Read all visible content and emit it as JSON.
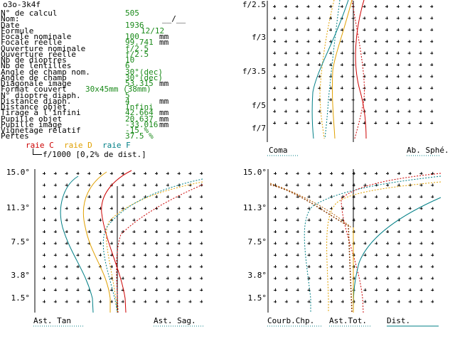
{
  "title": "o3o-3k4f",
  "params": [
    {
      "label": "N° de calcul",
      "value": "505",
      "unit": ""
    },
    {
      "label": "Nom:",
      "value": "__/__",
      "unit": ""
    },
    {
      "label": "Date",
      "value": "1936",
      "unit": ""
    },
    {
      "label": "Formule",
      "value": "12/12",
      "unit": ""
    },
    {
      "label": "Focale nominale",
      "value": "100",
      "unit": "mm"
    },
    {
      "label": "Focale réelle",
      "value": "99.741",
      "unit": "mm"
    },
    {
      "label": "Ouverture nominale",
      "value": "f/2.5",
      "unit": ""
    },
    {
      "label": "Ouverture réelle",
      "value": "f/2.5",
      "unit": ""
    },
    {
      "label": "Nb de dioptres",
      "value": "10",
      "unit": ""
    },
    {
      "label": "Nb de lentilles",
      "value": "6",
      "unit": ""
    },
    {
      "label": "Angle de champ nom.",
      "value": "30°(dec)",
      "unit": ""
    },
    {
      "label": "Angle de champ",
      "value": "30°(dec)",
      "unit": ""
    },
    {
      "label": "Diagonale image",
      "value": "53.315",
      "unit": "mm"
    },
    {
      "label": "Format couvert",
      "value": "30x45mm (38mm)",
      "unit": ""
    },
    {
      "label": "N° dioptre diaph.",
      "value": "5",
      "unit": ""
    },
    {
      "label": "Distance diaph.",
      "value": "4",
      "unit": "mm"
    },
    {
      "label": "Distance objet",
      "value": "Infini",
      "unit": ""
    },
    {
      "label": "Tirage à l'infini",
      "value": "42.664",
      "unit": "mm"
    },
    {
      "label": "Pupille objet",
      "value": "20.637",
      "unit": "mm"
    },
    {
      "label": "Pupille image",
      "value": "-33.016",
      "unit": "mm"
    },
    {
      "label": "Vignetage relatif",
      "value": "-15 %",
      "unit": ""
    },
    {
      "label": "Pertes",
      "value": "37.5 %",
      "unit": ""
    }
  ],
  "legend": {
    "c": "raie C",
    "d": "raie D",
    "f": "raie F",
    "scale": "f/1000 [0,2% de dist.]"
  },
  "colors": {
    "C": "#cc0000",
    "D": "#e0a000",
    "F": "#007f86",
    "value": "#1a8a1a"
  },
  "top_right": {
    "ylabels": [
      "f/2.5",
      "f/3",
      "f/3.5",
      "f/5",
      "f/7"
    ],
    "left_label": "Coma",
    "right_label": "Ab. Sphé."
  },
  "bottom_left": {
    "ylabels": [
      "15.0°",
      "11.3°",
      "7.5°",
      "3.8°",
      "1.5°"
    ],
    "left_label": "Ast. Tan",
    "right_label": "Ast. Sag."
  },
  "bottom_right": {
    "ylabels": [
      "15.0°",
      "11.3°",
      "7.5°",
      "3.8°",
      "1.5°"
    ],
    "label1": "Courb.Chp.",
    "label2": "Ast.Tot.",
    "label3": "Dist."
  }
}
